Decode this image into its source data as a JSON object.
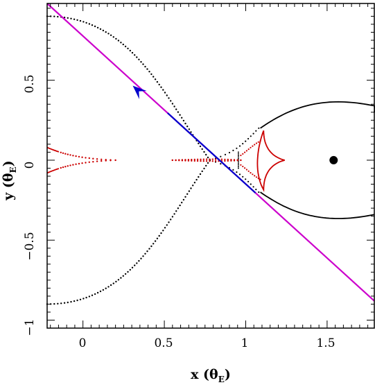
{
  "chart_data": {
    "type": "line",
    "title": "",
    "xlabel": "x (θ",
    "xlabel_sub": "E",
    "xlabel_tail": ")",
    "ylabel": "y (θ",
    "ylabel_sub": "E",
    "ylabel_tail": ")",
    "xlim": [
      -0.22,
      1.79
    ],
    "ylim": [
      -1.05,
      0.98
    ],
    "xticks": [
      0,
      0.5,
      1,
      1.5
    ],
    "xtick_labels": [
      "0",
      "0.5",
      "1",
      "1.5"
    ],
    "yticks": [
      -1,
      -0.5,
      0,
      0.5
    ],
    "ytick_labels": [
      "−1",
      "−0.5",
      "0",
      "0.5"
    ],
    "grid": false,
    "colors": {
      "source_trajectory": "#cc00cc",
      "trajectory_highlight": "#0000cc",
      "direction_arrow": "#0000cc",
      "caustics": "#cc0000",
      "critical_curve": "#000000",
      "companion_mass": "#000000"
    },
    "source_trajectory": {
      "start": [
        -0.22,
        0.98
      ],
      "end": [
        1.79,
        -0.88
      ],
      "highlight_from_x": 0.52,
      "highlight_to_x": 1.06,
      "arrow_at": [
        0.35,
        0.425
      ]
    },
    "companion_position": [
      1.54,
      0.0
    ],
    "caustic_central": [
      [
        1.24,
        0.0
      ],
      [
        1.11,
        0.185
      ],
      [
        1.11,
        -0.185
      ]
    ],
    "critical_curve_open_left_tip": [
      0.78,
      0.0
    ],
    "critical_curve_right_lobe_peak": [
      1.6,
      0.37
    ]
  }
}
